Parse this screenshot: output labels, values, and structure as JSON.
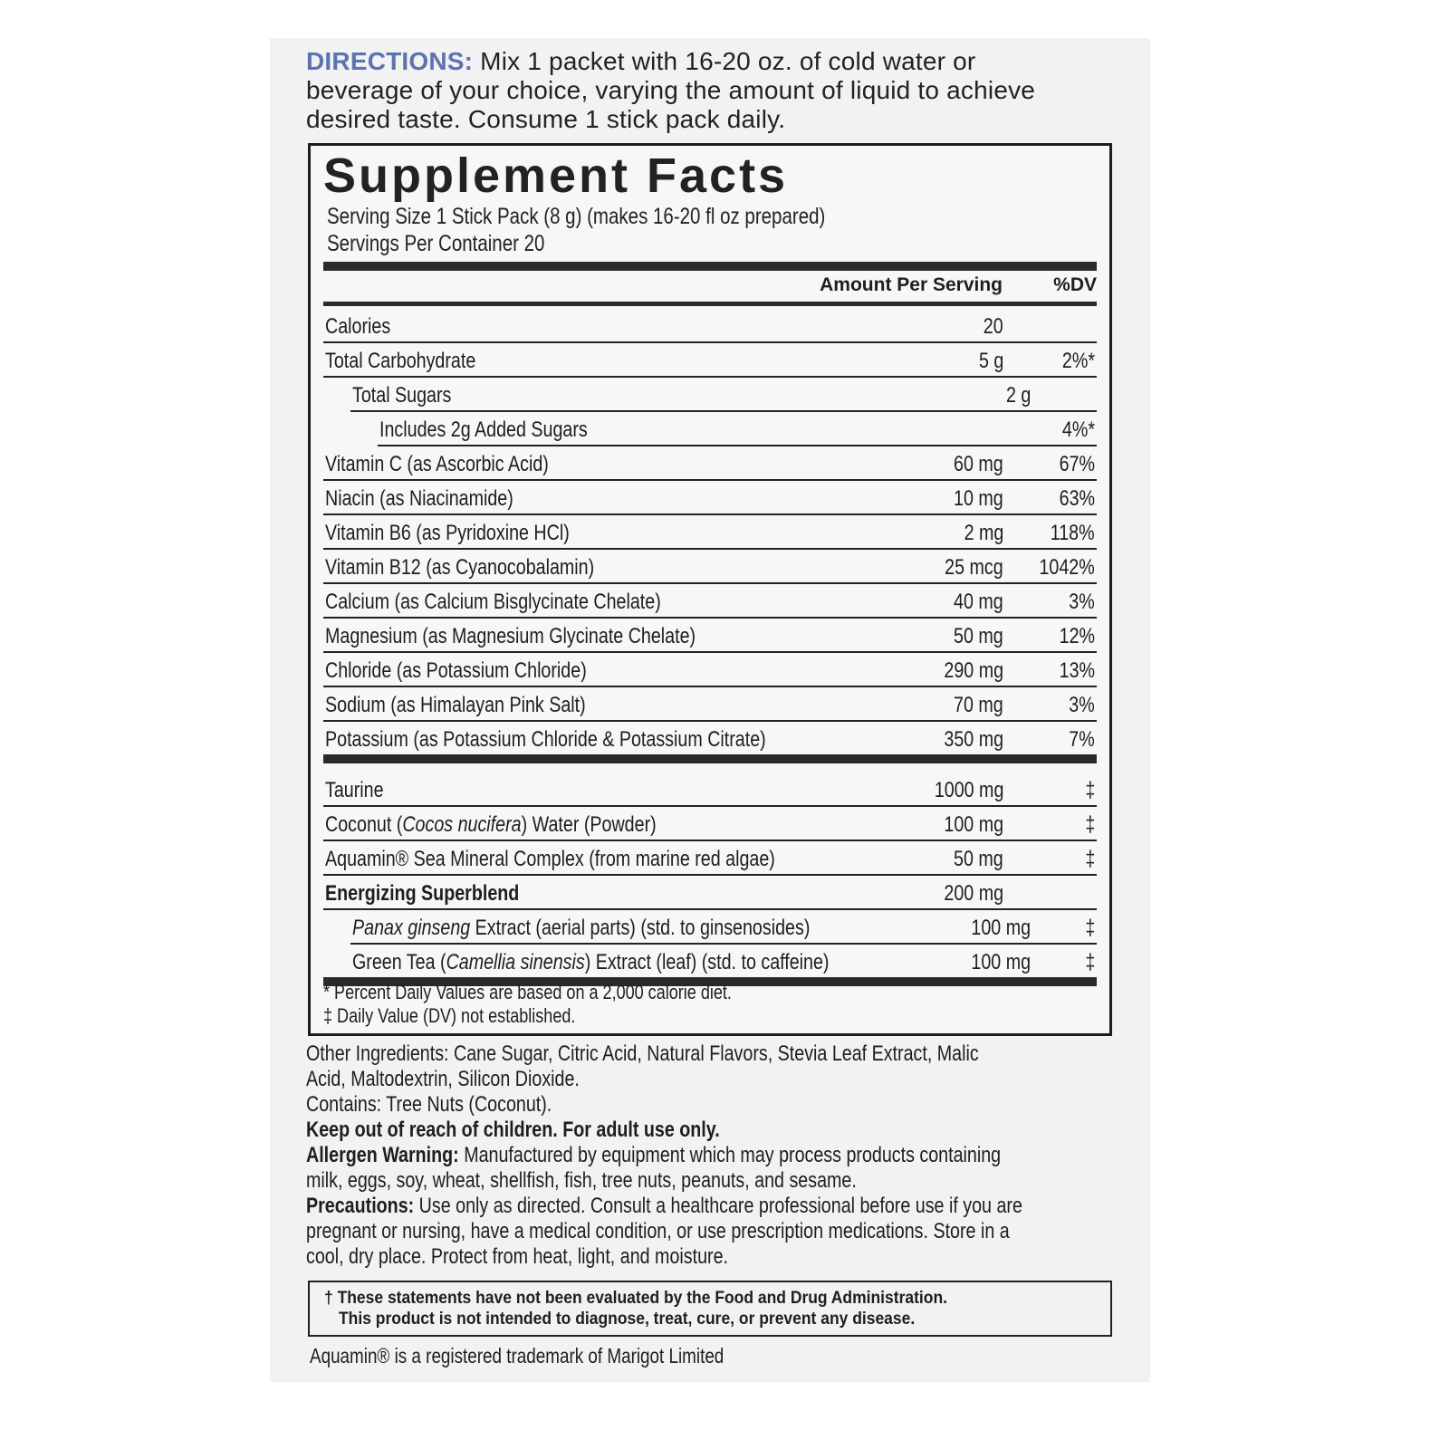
{
  "directions": {
    "label": "DIRECTIONS:",
    "lines": [
      " Mix 1 packet with 16-20 oz. of cold water or",
      "beverage of your choice, varying the amount of liquid to achieve",
      "desired taste. Consume 1 stick pack daily."
    ]
  },
  "facts": {
    "title": "Supplement Facts",
    "serving_size": "Serving Size 1 Stick Pack (8 g) (makes 16-20 fl oz prepared)",
    "servings_per_container": "Servings Per Container 20",
    "col_amount": "Amount Per Serving",
    "col_dv": "%DV",
    "rows": [
      {
        "name": "Calories",
        "amount": "20",
        "dv": ""
      },
      {
        "name": "Total Carbohydrate",
        "amount": "5 g",
        "dv": "2%*"
      },
      {
        "name": "Total Sugars",
        "amount": "2 g",
        "dv": "",
        "indent": 1
      },
      {
        "name": "Includes 2g Added Sugars",
        "amount": "",
        "dv": "4%*",
        "indent": 2
      },
      {
        "name": "Vitamin C (as Ascorbic Acid)",
        "amount": "60 mg",
        "dv": "67%"
      },
      {
        "name": "Niacin (as Niacinamide)",
        "amount": "10 mg",
        "dv": "63%"
      },
      {
        "name": "Vitamin B6 (as Pyridoxine HCl)",
        "amount": "2 mg",
        "dv": "118%"
      },
      {
        "name": "Vitamin B12 (as Cyanocobalamin)",
        "amount": "25 mcg",
        "dv": "1042%"
      },
      {
        "name": "Calcium (as Calcium Bisglycinate Chelate)",
        "amount": "40 mg",
        "dv": "3%"
      },
      {
        "name": "Magnesium (as Magnesium Glycinate Chelate)",
        "amount": "50 mg",
        "dv": "12%"
      },
      {
        "name": "Chloride (as Potassium Chloride)",
        "amount": "290 mg",
        "dv": "13%"
      },
      {
        "name": "Sodium (as Himalayan Pink Salt)",
        "amount": "70 mg",
        "dv": "3%"
      },
      {
        "name": "Potassium (as Potassium Chloride & Potassium Citrate)",
        "amount": "350 mg",
        "dv": "7%"
      }
    ],
    "other_rows": [
      {
        "name": "Taurine",
        "amount": "1000 mg",
        "dv": "‡"
      },
      {
        "name": "Coconut (",
        "italic": "Cocos nucifera",
        "post": ") Water (Powder)",
        "amount": "100 mg",
        "dv": "‡"
      },
      {
        "name": "Aquamin® Sea Mineral Complex (from marine red algae)",
        "amount": "50 mg",
        "dv": "‡"
      },
      {
        "name": "Energizing Superblend",
        "amount": "200 mg",
        "dv": "",
        "bold": true
      },
      {
        "name": "",
        "italic": "Panax ginseng",
        "post": " Extract (aerial parts) (std. to ginsenosides)",
        "amount": "100 mg",
        "dv": "‡",
        "indent": 1
      },
      {
        "name": "Green Tea (",
        "italic": "Camellia sinensis",
        "post": ") Extract (leaf) (std. to caffeine)",
        "amount": "100 mg",
        "dv": "‡",
        "indent": 1
      }
    ],
    "footnote_1": "* Percent Daily Values are based on a 2,000 calorie diet.",
    "footnote_2": "‡ Daily Value (DV) not established."
  },
  "other_ingredients": [
    "Other Ingredients: Cane Sugar, Citric Acid, Natural Flavors, Stevia Leaf Extract, Malic",
    "Acid, Maltodextrin, Silicon Dioxide."
  ],
  "contains": "Contains: Tree Nuts (Coconut).",
  "keep_out": "Keep out of reach of children. For adult use only.",
  "allergen": {
    "label": "Allergen Warning:",
    "lines": [
      " Manufactured by equipment which may process products containing",
      "milk, eggs, soy, wheat, shellfish, fish, tree nuts, peanuts, and sesame."
    ]
  },
  "precautions": {
    "label": "Precautions:",
    "lines": [
      " Use only as directed. Consult a healthcare professional before use if you are",
      "pregnant or nursing, have a medical condition, or use prescription medications. Store in a",
      "cool, dry place. Protect from heat, light, and moisture."
    ]
  },
  "fda": [
    "† These statements have not been evaluated by the Food and Drug Administration.",
    "This product is not intended to diagnose, treat, cure, or prevent any disease."
  ],
  "trademark": "Aquamin® is a registered trademark of Marigot Limited",
  "colors": {
    "directions_label": "#5b73b0",
    "panel": "#f2f2f2",
    "ink": "#1e1e1e"
  }
}
